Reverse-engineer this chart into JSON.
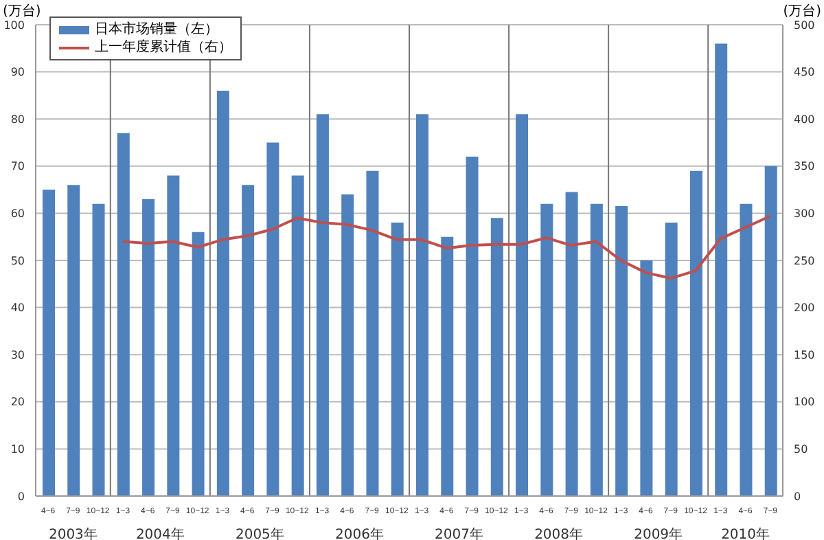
{
  "chart_data": {
    "type": "bar",
    "ylabel": "(万台)",
    "y2label": "(万台)",
    "categories": [
      "4~6",
      "7~9",
      "10~12",
      "1~3",
      "4~6",
      "7~9",
      "10~12",
      "1~3",
      "4~6",
      "7~9",
      "10~12",
      "1~3",
      "4~6",
      "7~9",
      "10~12",
      "1~3",
      "4~6",
      "7~9",
      "10~12",
      "1~3",
      "4~6",
      "7~9",
      "10~12",
      "1~3",
      "4~6",
      "7~9",
      "10~12",
      "1~3",
      "4~6",
      "7~9"
    ],
    "annotations": [
      "2003年",
      "2004年",
      "2005年",
      "2006年",
      "2007年",
      "2008年",
      "2009年",
      "2010年"
    ],
    "series": [
      {
        "name": "日本市场销量（左）",
        "color": "#4f81bd",
        "values": [
          65,
          66,
          62,
          77,
          63,
          68,
          56,
          86,
          66,
          75,
          68,
          81,
          64,
          69,
          58,
          81,
          55,
          72,
          59,
          81,
          62,
          64.5,
          62,
          61.5,
          50,
          58,
          69,
          96,
          62,
          70
        ]
      },
      {
        "name": "上一年度累计值（右）",
        "type": "line",
        "axis": "y2",
        "color": "#c0504d",
        "values": [
          null,
          null,
          null,
          270,
          268,
          270,
          264,
          272,
          276,
          283,
          295,
          290,
          288,
          282,
          272,
          272,
          263,
          266,
          267,
          267,
          274,
          266,
          270,
          250,
          237,
          231,
          239,
          273,
          285,
          297
        ]
      }
    ],
    "ylim": [
      0,
      100
    ],
    "yticks": [
      0,
      10,
      20,
      30,
      40,
      50,
      60,
      70,
      80,
      90,
      100
    ],
    "y2lim": [
      0,
      500
    ],
    "y2ticks": [
      0,
      50,
      100,
      150,
      200,
      250,
      300,
      350,
      400,
      450,
      500
    ],
    "grid": "y",
    "legend": "top left",
    "marker": "none",
    "line_style": "solid"
  }
}
